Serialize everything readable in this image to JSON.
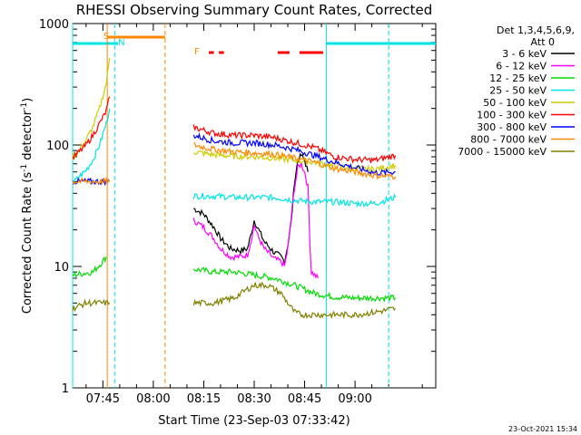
{
  "chart_data": {
    "type": "line",
    "title": "RHESSI Observing Summary Count Rates, Corrected",
    "xlabel": "Start Time (23-Sep-03 07:33:42)",
    "ylabel": "Corrected Count Rate (s⁻¹ detector⁻¹)",
    "ylabel_main": "Corrected Count Rate (s",
    "ylabel_sup1": "-1",
    "ylabel_mid": " detector",
    "ylabel_sup2": "-1",
    "ylabel_end": ")",
    "yscale": "log",
    "ylim": [
      1,
      1000
    ],
    "xlim_min": [
      36,
      144
    ],
    "x_ticks": [
      {
        "min": 45,
        "label": "07:45"
      },
      {
        "min": 60,
        "label": "08:00"
      },
      {
        "min": 75,
        "label": "08:15"
      },
      {
        "min": 90,
        "label": "08:30"
      },
      {
        "min": 105,
        "label": "08:45"
      },
      {
        "min": 120,
        "label": "09:00"
      }
    ],
    "y_ticks": [
      {
        "value": 1,
        "label": "1"
      },
      {
        "value": 10,
        "label": "10"
      },
      {
        "value": 100,
        "label": "100"
      },
      {
        "value": 1000,
        "label": "1000"
      }
    ],
    "legend_title": "Det 1,3,4,5,6,9,",
    "legend_subtitle": "Att 0",
    "series": [
      {
        "name": "3 - 6 keV",
        "color": "#000000",
        "points": [
          [
            72,
            30
          ],
          [
            75,
            27
          ],
          [
            78,
            21
          ],
          [
            80,
            17
          ],
          [
            83,
            14
          ],
          [
            86,
            13.5
          ],
          [
            88,
            14
          ],
          [
            89,
            18
          ],
          [
            90,
            24
          ],
          [
            91,
            21
          ],
          [
            93,
            16
          ],
          [
            96,
            13
          ],
          [
            98,
            12
          ],
          [
            99,
            11
          ],
          [
            100,
            15
          ],
          [
            101,
            23
          ],
          [
            102,
            50
          ],
          [
            103,
            75
          ],
          [
            104,
            82
          ],
          [
            105,
            75
          ],
          [
            106,
            60
          ]
        ]
      },
      {
        "name": "6 - 12 keV",
        "color": "#ff00ff",
        "points": [
          [
            72,
            24
          ],
          [
            75,
            21
          ],
          [
            78,
            17
          ],
          [
            80,
            14
          ],
          [
            83,
            12
          ],
          [
            86,
            12
          ],
          [
            88,
            12.5
          ],
          [
            89,
            16
          ],
          [
            90,
            22
          ],
          [
            91,
            18
          ],
          [
            93,
            14
          ],
          [
            96,
            11.5
          ],
          [
            98,
            11
          ],
          [
            99,
            10
          ],
          [
            100,
            14
          ],
          [
            101,
            25
          ],
          [
            102,
            45
          ],
          [
            103,
            65
          ],
          [
            104,
            70
          ],
          [
            105,
            60
          ],
          [
            106,
            45
          ],
          [
            106.6,
            15
          ],
          [
            107,
            9
          ],
          [
            109,
            8
          ]
        ]
      },
      {
        "name": "12 - 25 keV",
        "color": "#00dd00",
        "points": [
          [
            36,
            8.5
          ],
          [
            42,
            9
          ],
          [
            45,
            11
          ],
          [
            46,
            12
          ],
          [
            72,
            9.5
          ],
          [
            78,
            9
          ],
          [
            84,
            9
          ],
          [
            90,
            8.5
          ],
          [
            96,
            8
          ],
          [
            102,
            7
          ],
          [
            108,
            6
          ],
          [
            114,
            5.6
          ],
          [
            120,
            5.5
          ],
          [
            126,
            5.5
          ],
          [
            132,
            5.5
          ]
        ]
      },
      {
        "name": "25 - 50 keV",
        "color": "#00e5e5",
        "points": [
          [
            36,
            48
          ],
          [
            38,
            55
          ],
          [
            40,
            62
          ],
          [
            42,
            75
          ],
          [
            44,
            100
          ],
          [
            46,
            150
          ],
          [
            47,
            200
          ],
          [
            72,
            38
          ],
          [
            78,
            38
          ],
          [
            84,
            37
          ],
          [
            90,
            37
          ],
          [
            96,
            37
          ],
          [
            102,
            35
          ],
          [
            108,
            34
          ],
          [
            114,
            34
          ],
          [
            120,
            33
          ],
          [
            126,
            33
          ],
          [
            132,
            37
          ]
        ]
      },
      {
        "name": "50 - 100 keV",
        "color": "#cccc00",
        "points": [
          [
            36,
            80
          ],
          [
            38,
            90
          ],
          [
            40,
            110
          ],
          [
            42,
            140
          ],
          [
            44,
            200
          ],
          [
            46,
            320
          ],
          [
            47,
            520
          ],
          [
            72,
            88
          ],
          [
            78,
            83
          ],
          [
            84,
            81
          ],
          [
            90,
            80
          ],
          [
            96,
            78
          ],
          [
            102,
            75
          ],
          [
            108,
            72
          ],
          [
            114,
            67
          ],
          [
            120,
            64
          ],
          [
            126,
            63
          ],
          [
            132,
            68
          ]
        ]
      },
      {
        "name": "100 - 300 keV",
        "color": "#ff0000",
        "points": [
          [
            36,
            78
          ],
          [
            38,
            88
          ],
          [
            40,
            100
          ],
          [
            42,
            120
          ],
          [
            44,
            150
          ],
          [
            46,
            190
          ],
          [
            47,
            250
          ],
          [
            72,
            140
          ],
          [
            78,
            125
          ],
          [
            84,
            120
          ],
          [
            90,
            120
          ],
          [
            96,
            115
          ],
          [
            102,
            105
          ],
          [
            108,
            95
          ],
          [
            114,
            80
          ],
          [
            120,
            76
          ],
          [
            126,
            75
          ],
          [
            132,
            82
          ]
        ]
      },
      {
        "name": "300 - 800 keV",
        "color": "#0000ff",
        "points": [
          [
            36,
            50
          ],
          [
            40,
            50
          ],
          [
            44,
            50
          ],
          [
            47,
            50
          ],
          [
            72,
            120
          ],
          [
            78,
            108
          ],
          [
            84,
            104
          ],
          [
            90,
            104
          ],
          [
            96,
            100
          ],
          [
            102,
            92
          ],
          [
            108,
            82
          ],
          [
            114,
            72
          ],
          [
            120,
            65
          ],
          [
            126,
            59
          ],
          [
            132,
            60
          ]
        ]
      },
      {
        "name": "800 - 7000 keV",
        "color": "#ff8800",
        "points": [
          [
            36,
            50
          ],
          [
            40,
            50
          ],
          [
            44,
            50
          ],
          [
            47,
            50
          ],
          [
            72,
            100
          ],
          [
            78,
            92
          ],
          [
            84,
            88
          ],
          [
            90,
            86
          ],
          [
            96,
            84
          ],
          [
            102,
            78
          ],
          [
            108,
            72
          ],
          [
            114,
            64
          ],
          [
            120,
            60
          ],
          [
            126,
            56
          ],
          [
            132,
            55
          ]
        ]
      },
      {
        "name": "7000 - 15000 keV",
        "color": "#808000",
        "points": [
          [
            36,
            4.5
          ],
          [
            40,
            5
          ],
          [
            44,
            5
          ],
          [
            47,
            5
          ],
          [
            72,
            5
          ],
          [
            78,
            5
          ],
          [
            84,
            5.5
          ],
          [
            88,
            6.5
          ],
          [
            90,
            7
          ],
          [
            94,
            7
          ],
          [
            96,
            6.5
          ],
          [
            98,
            6
          ],
          [
            100,
            5
          ],
          [
            102,
            4.2
          ],
          [
            104,
            4
          ],
          [
            108,
            4
          ],
          [
            114,
            4
          ],
          [
            120,
            4
          ],
          [
            126,
            4.2
          ],
          [
            132,
            4.5
          ]
        ]
      }
    ],
    "markers": [
      {
        "label": "S",
        "min": 46.5,
        "color": "#ff8800"
      },
      {
        "label": "N",
        "min": 49,
        "color": "#00e5e5"
      },
      {
        "label": "F",
        "min": 73,
        "color": "#ff8800"
      }
    ],
    "footer_date": "23-Oct-2021 15:34"
  }
}
